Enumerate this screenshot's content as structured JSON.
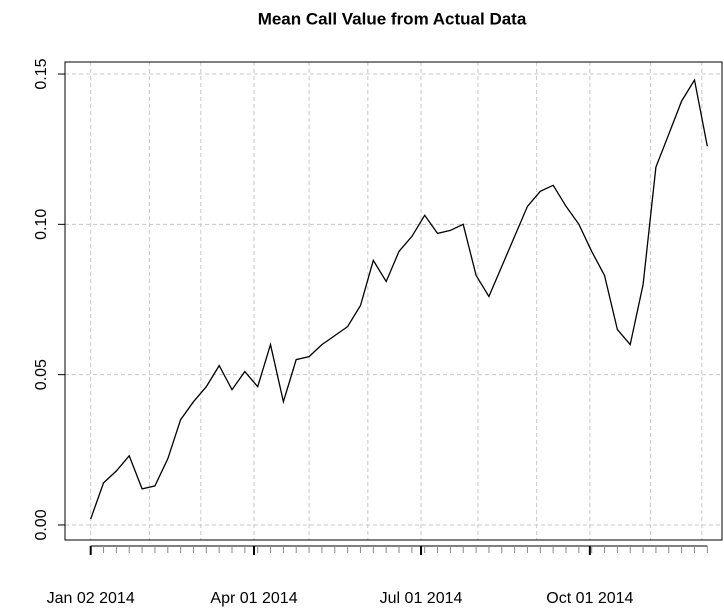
{
  "chart_data": {
    "type": "line",
    "title": "Mean Call Value from Actual Data",
    "x": [
      "2014-01-02",
      "2014-01-09",
      "2014-01-16",
      "2014-01-23",
      "2014-01-30",
      "2014-02-06",
      "2014-02-13",
      "2014-02-20",
      "2014-02-27",
      "2014-03-06",
      "2014-03-13",
      "2014-03-20",
      "2014-03-27",
      "2014-04-03",
      "2014-04-10",
      "2014-04-17",
      "2014-04-24",
      "2014-05-01",
      "2014-05-08",
      "2014-05-15",
      "2014-05-22",
      "2014-05-29",
      "2014-06-05",
      "2014-06-12",
      "2014-06-19",
      "2014-06-26",
      "2014-07-03",
      "2014-07-10",
      "2014-07-17",
      "2014-07-24",
      "2014-07-31",
      "2014-08-07",
      "2014-08-14",
      "2014-08-21",
      "2014-08-28",
      "2014-09-04",
      "2014-09-11",
      "2014-09-18",
      "2014-09-25",
      "2014-10-02",
      "2014-10-09",
      "2014-10-16",
      "2014-10-23",
      "2014-10-30",
      "2014-11-06",
      "2014-11-13",
      "2014-11-20",
      "2014-11-27",
      "2014-12-04"
    ],
    "series": [
      {
        "color": "#000000",
        "values": [
          0.002,
          0.014,
          0.018,
          0.023,
          0.012,
          0.013,
          0.022,
          0.035,
          0.041,
          0.046,
          0.053,
          0.045,
          0.051,
          0.046,
          0.06,
          0.041,
          0.055,
          0.056,
          0.06,
          0.063,
          0.066,
          0.073,
          0.088,
          0.081,
          0.091,
          0.096,
          0.103,
          0.097,
          0.098,
          0.1,
          0.083,
          0.076,
          0.086,
          0.096,
          0.106,
          0.111,
          0.113,
          0.106,
          0.1,
          0.091,
          0.083,
          0.065,
          0.06,
          0.08,
          0.119,
          0.13,
          0.141,
          0.148,
          0.126
        ]
      }
    ],
    "xlim": [
      "2013-12-19",
      "2014-12-12"
    ],
    "xticks": [
      {
        "value": "2014-01-02",
        "label": "Jan 02 2014"
      },
      {
        "value": "2014-04-01",
        "label": "Apr 01 2014"
      },
      {
        "value": "2014-07-01",
        "label": "Jul 01 2014"
      },
      {
        "value": "2014-10-01",
        "label": "Oct 01 2014"
      }
    ],
    "xgrid": [
      "2014-01-02",
      "2014-02-03",
      "2014-03-03",
      "2014-04-01",
      "2014-05-01",
      "2014-06-02",
      "2014-07-01",
      "2014-08-01",
      "2014-09-02",
      "2014-10-01",
      "2014-11-03",
      "2014-12-01"
    ],
    "ylim": [
      -0.005,
      0.154
    ],
    "yticks": [
      {
        "value": 0,
        "label": "0.00"
      },
      {
        "value": 0.05,
        "label": "0.05"
      },
      {
        "value": 0.1,
        "label": "0.10"
      },
      {
        "value": 0.15,
        "label": "0.15"
      }
    ],
    "grid": true
  }
}
